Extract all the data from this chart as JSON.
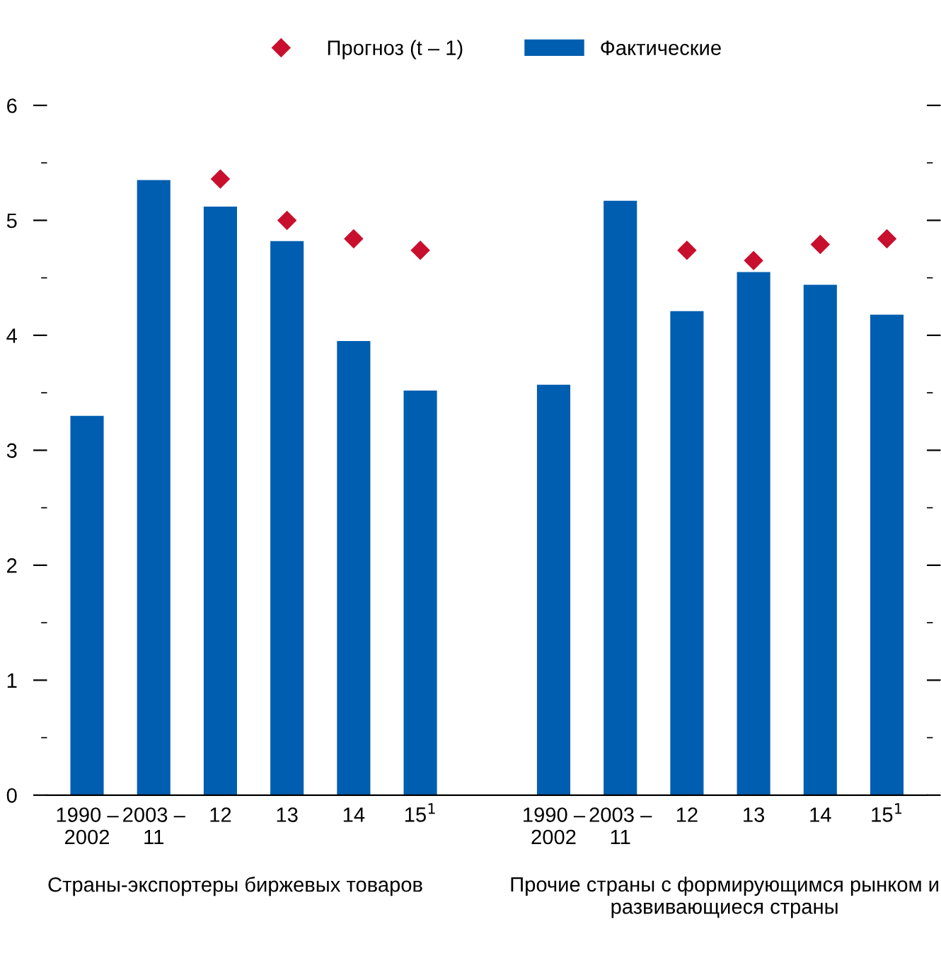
{
  "chart_data": {
    "type": "bar",
    "categories": [
      "1990 –\n2002",
      "2003 –\n11",
      "12",
      "13",
      "14",
      "15$^{1}$",
      null,
      "1990 –\n2002",
      "2003 –\n11",
      "12",
      "13",
      "14",
      "15$^{1}$"
    ],
    "series": [
      {
        "name": "Прогноз (t – 1)",
        "type": "scatter",
        "color": "#c8102e",
        "marker": "diamond",
        "values": [
          null,
          null,
          5.36,
          5.0,
          4.84,
          4.74,
          null,
          null,
          null,
          4.74,
          4.65,
          4.79,
          4.84
        ]
      },
      {
        "name": "Фактические",
        "color": "#005eb0",
        "values": [
          3.3,
          5.35,
          5.12,
          4.82,
          3.95,
          3.52,
          null,
          3.57,
          5.17,
          4.21,
          4.55,
          4.44,
          4.18
        ]
      }
    ],
    "ylim": [
      0,
      6
    ],
    "yticks": [
      0,
      {
        "value": 0.5,
        "label": null
      },
      1,
      {
        "value": 1.5,
        "label": null
      },
      2,
      {
        "value": 2.5,
        "label": null
      },
      3,
      {
        "value": 3.5,
        "label": null
      },
      4,
      {
        "value": 4.5,
        "label": null
      },
      5,
      {
        "value": 5.5,
        "label": null
      },
      6
    ],
    "legend": "top",
    "grid": false,
    "annotations": [
      "Страны-экспортеры биржевых товаров",
      "Прочие страны с формирующимся рынком и развивающиеся страны"
    ]
  }
}
